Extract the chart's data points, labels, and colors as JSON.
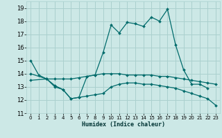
{
  "xlabel": "Humidex (Indice chaleur)",
  "background_color": "#cce8e6",
  "grid_color": "#aad0ce",
  "line_color": "#006b6b",
  "xlim": [
    -0.5,
    23.5
  ],
  "ylim": [
    11,
    19.5
  ],
  "yticks": [
    11,
    12,
    13,
    14,
    15,
    16,
    17,
    18,
    19
  ],
  "xticks": [
    0,
    1,
    2,
    3,
    4,
    5,
    6,
    7,
    8,
    9,
    10,
    11,
    12,
    13,
    14,
    15,
    16,
    17,
    18,
    19,
    20,
    21,
    22,
    23
  ],
  "series": [
    {
      "x": [
        0,
        1,
        2,
        3,
        4,
        5,
        6,
        7,
        8,
        9,
        10,
        11,
        12,
        13,
        14,
        15,
        16,
        17,
        18,
        19,
        20,
        21,
        22
      ],
      "y": [
        15.0,
        13.9,
        13.6,
        13.0,
        12.8,
        12.1,
        12.2,
        13.8,
        13.9,
        15.6,
        17.7,
        17.1,
        17.9,
        17.8,
        17.6,
        18.3,
        18.0,
        18.9,
        16.2,
        14.3,
        13.2,
        13.2,
        12.9
      ]
    },
    {
      "x": [
        0,
        2,
        3,
        4,
        5,
        6,
        7,
        8,
        9,
        10,
        11,
        12,
        13,
        14,
        15,
        16,
        17,
        18,
        19,
        20,
        21,
        22,
        23
      ],
      "y": [
        14.0,
        13.6,
        13.6,
        13.6,
        13.6,
        13.7,
        13.8,
        13.9,
        14.0,
        14.0,
        14.0,
        13.9,
        13.9,
        13.9,
        13.9,
        13.8,
        13.8,
        13.7,
        13.6,
        13.5,
        13.4,
        13.3,
        13.2
      ]
    },
    {
      "x": [
        0,
        2,
        3,
        4,
        5,
        6,
        7,
        8,
        9,
        10,
        11,
        12,
        13,
        14,
        15,
        16,
        17,
        18,
        19,
        20,
        21,
        22,
        23
      ],
      "y": [
        13.5,
        13.6,
        13.1,
        12.8,
        12.1,
        12.2,
        12.3,
        12.4,
        12.5,
        13.0,
        13.2,
        13.3,
        13.3,
        13.2,
        13.2,
        13.1,
        13.0,
        12.9,
        12.7,
        12.5,
        12.3,
        12.1,
        11.6
      ]
    }
  ]
}
